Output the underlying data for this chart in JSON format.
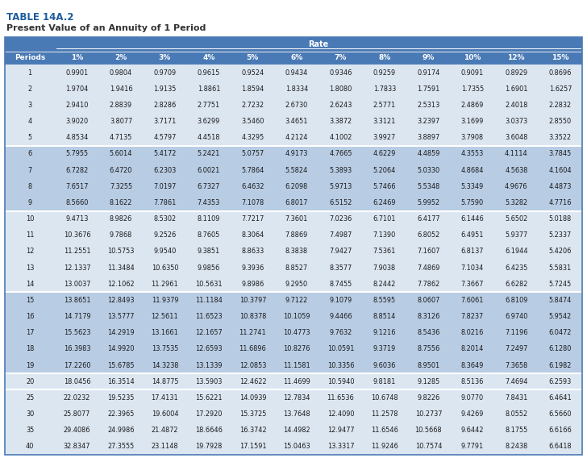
{
  "title": "TABLE 14A.2",
  "subtitle": "Present Value of an Annuity of 1 Period",
  "col_header_main": "Rate",
  "col_headers": [
    "Periods",
    "1%",
    "2%",
    "3%",
    "4%",
    "5%",
    "6%",
    "7%",
    "8%",
    "9%",
    "10%",
    "12%",
    "15%"
  ],
  "rows": [
    [
      "1",
      "0.9901",
      "0.9804",
      "0.9709",
      "0.9615",
      "0.9524",
      "0.9434",
      "0.9346",
      "0.9259",
      "0.9174",
      "0.9091",
      "0.8929",
      "0.8696"
    ],
    [
      "2",
      "1.9704",
      "1.9416",
      "1.9135",
      "1.8861",
      "1.8594",
      "1.8334",
      "1.8080",
      "1.7833",
      "1.7591",
      "1.7355",
      "1.6901",
      "1.6257"
    ],
    [
      "3",
      "2.9410",
      "2.8839",
      "2.8286",
      "2.7751",
      "2.7232",
      "2.6730",
      "2.6243",
      "2.5771",
      "2.5313",
      "2.4869",
      "2.4018",
      "2.2832"
    ],
    [
      "4",
      "3.9020",
      "3.8077",
      "3.7171",
      "3.6299",
      "3.5460",
      "3.4651",
      "3.3872",
      "3.3121",
      "3.2397",
      "3.1699",
      "3.0373",
      "2.8550"
    ],
    [
      "5",
      "4.8534",
      "4.7135",
      "4.5797",
      "4.4518",
      "4.3295",
      "4.2124",
      "4.1002",
      "3.9927",
      "3.8897",
      "3.7908",
      "3.6048",
      "3.3522"
    ],
    [
      "6",
      "5.7955",
      "5.6014",
      "5.4172",
      "5.2421",
      "5.0757",
      "4.9173",
      "4.7665",
      "4.6229",
      "4.4859",
      "4.3553",
      "4.1114",
      "3.7845"
    ],
    [
      "7",
      "6.7282",
      "6.4720",
      "6.2303",
      "6.0021",
      "5.7864",
      "5.5824",
      "5.3893",
      "5.2064",
      "5.0330",
      "4.8684",
      "4.5638",
      "4.1604"
    ],
    [
      "8",
      "7.6517",
      "7.3255",
      "7.0197",
      "6.7327",
      "6.4632",
      "6.2098",
      "5.9713",
      "5.7466",
      "5.5348",
      "5.3349",
      "4.9676",
      "4.4873"
    ],
    [
      "9",
      "8.5660",
      "8.1622",
      "7.7861",
      "7.4353",
      "7.1078",
      "6.8017",
      "6.5152",
      "6.2469",
      "5.9952",
      "5.7590",
      "5.3282",
      "4.7716"
    ],
    [
      "10",
      "9.4713",
      "8.9826",
      "8.5302",
      "8.1109",
      "7.7217",
      "7.3601",
      "7.0236",
      "6.7101",
      "6.4177",
      "6.1446",
      "5.6502",
      "5.0188"
    ],
    [
      "11",
      "10.3676",
      "9.7868",
      "9.2526",
      "8.7605",
      "8.3064",
      "7.8869",
      "7.4987",
      "7.1390",
      "6.8052",
      "6.4951",
      "5.9377",
      "5.2337"
    ],
    [
      "12",
      "11.2551",
      "10.5753",
      "9.9540",
      "9.3851",
      "8.8633",
      "8.3838",
      "7.9427",
      "7.5361",
      "7.1607",
      "6.8137",
      "6.1944",
      "5.4206"
    ],
    [
      "13",
      "12.1337",
      "11.3484",
      "10.6350",
      "9.9856",
      "9.3936",
      "8.8527",
      "8.3577",
      "7.9038",
      "7.4869",
      "7.1034",
      "6.4235",
      "5.5831"
    ],
    [
      "14",
      "13.0037",
      "12.1062",
      "11.2961",
      "10.5631",
      "9.8986",
      "9.2950",
      "8.7455",
      "8.2442",
      "7.7862",
      "7.3667",
      "6.6282",
      "5.7245"
    ],
    [
      "15",
      "13.8651",
      "12.8493",
      "11.9379",
      "11.1184",
      "10.3797",
      "9.7122",
      "9.1079",
      "8.5595",
      "8.0607",
      "7.6061",
      "6.8109",
      "5.8474"
    ],
    [
      "16",
      "14.7179",
      "13.5777",
      "12.5611",
      "11.6523",
      "10.8378",
      "10.1059",
      "9.4466",
      "8.8514",
      "8.3126",
      "7.8237",
      "6.9740",
      "5.9542"
    ],
    [
      "17",
      "15.5623",
      "14.2919",
      "13.1661",
      "12.1657",
      "11.2741",
      "10.4773",
      "9.7632",
      "9.1216",
      "8.5436",
      "8.0216",
      "7.1196",
      "6.0472"
    ],
    [
      "18",
      "16.3983",
      "14.9920",
      "13.7535",
      "12.6593",
      "11.6896",
      "10.8276",
      "10.0591",
      "9.3719",
      "8.7556",
      "8.2014",
      "7.2497",
      "6.1280"
    ],
    [
      "19",
      "17.2260",
      "15.6785",
      "14.3238",
      "13.1339",
      "12.0853",
      "11.1581",
      "10.3356",
      "9.6036",
      "8.9501",
      "8.3649",
      "7.3658",
      "6.1982"
    ],
    [
      "20",
      "18.0456",
      "16.3514",
      "14.8775",
      "13.5903",
      "12.4622",
      "11.4699",
      "10.5940",
      "9.8181",
      "9.1285",
      "8.5136",
      "7.4694",
      "6.2593"
    ],
    [
      "25",
      "22.0232",
      "19.5235",
      "17.4131",
      "15.6221",
      "14.0939",
      "12.7834",
      "11.6536",
      "10.6748",
      "9.8226",
      "9.0770",
      "7.8431",
      "6.4641"
    ],
    [
      "30",
      "25.8077",
      "22.3965",
      "19.6004",
      "17.2920",
      "15.3725",
      "13.7648",
      "12.4090",
      "11.2578",
      "10.2737",
      "9.4269",
      "8.0552",
      "6.5660"
    ],
    [
      "35",
      "29.4086",
      "24.9986",
      "21.4872",
      "18.6646",
      "16.3742",
      "14.4982",
      "12.9477",
      "11.6546",
      "10.5668",
      "9.6442",
      "8.1755",
      "6.6166"
    ],
    [
      "40",
      "32.8347",
      "27.3555",
      "23.1148",
      "19.7928",
      "17.1591",
      "15.0463",
      "13.3317",
      "11.9246",
      "10.7574",
      "9.7791",
      "8.2438",
      "6.6418"
    ]
  ],
  "group_separators_after": [
    4,
    8,
    13,
    18,
    19
  ],
  "header_bg": "#4a7ab5",
  "header_text": "#ffffff",
  "row_bg_light": "#dce6f1",
  "row_bg_mid": "#c5d9f1",
  "row_bg_dark": "#b8cce4",
  "title_color": "#1f5c9e",
  "separator_color": "#ffffff"
}
